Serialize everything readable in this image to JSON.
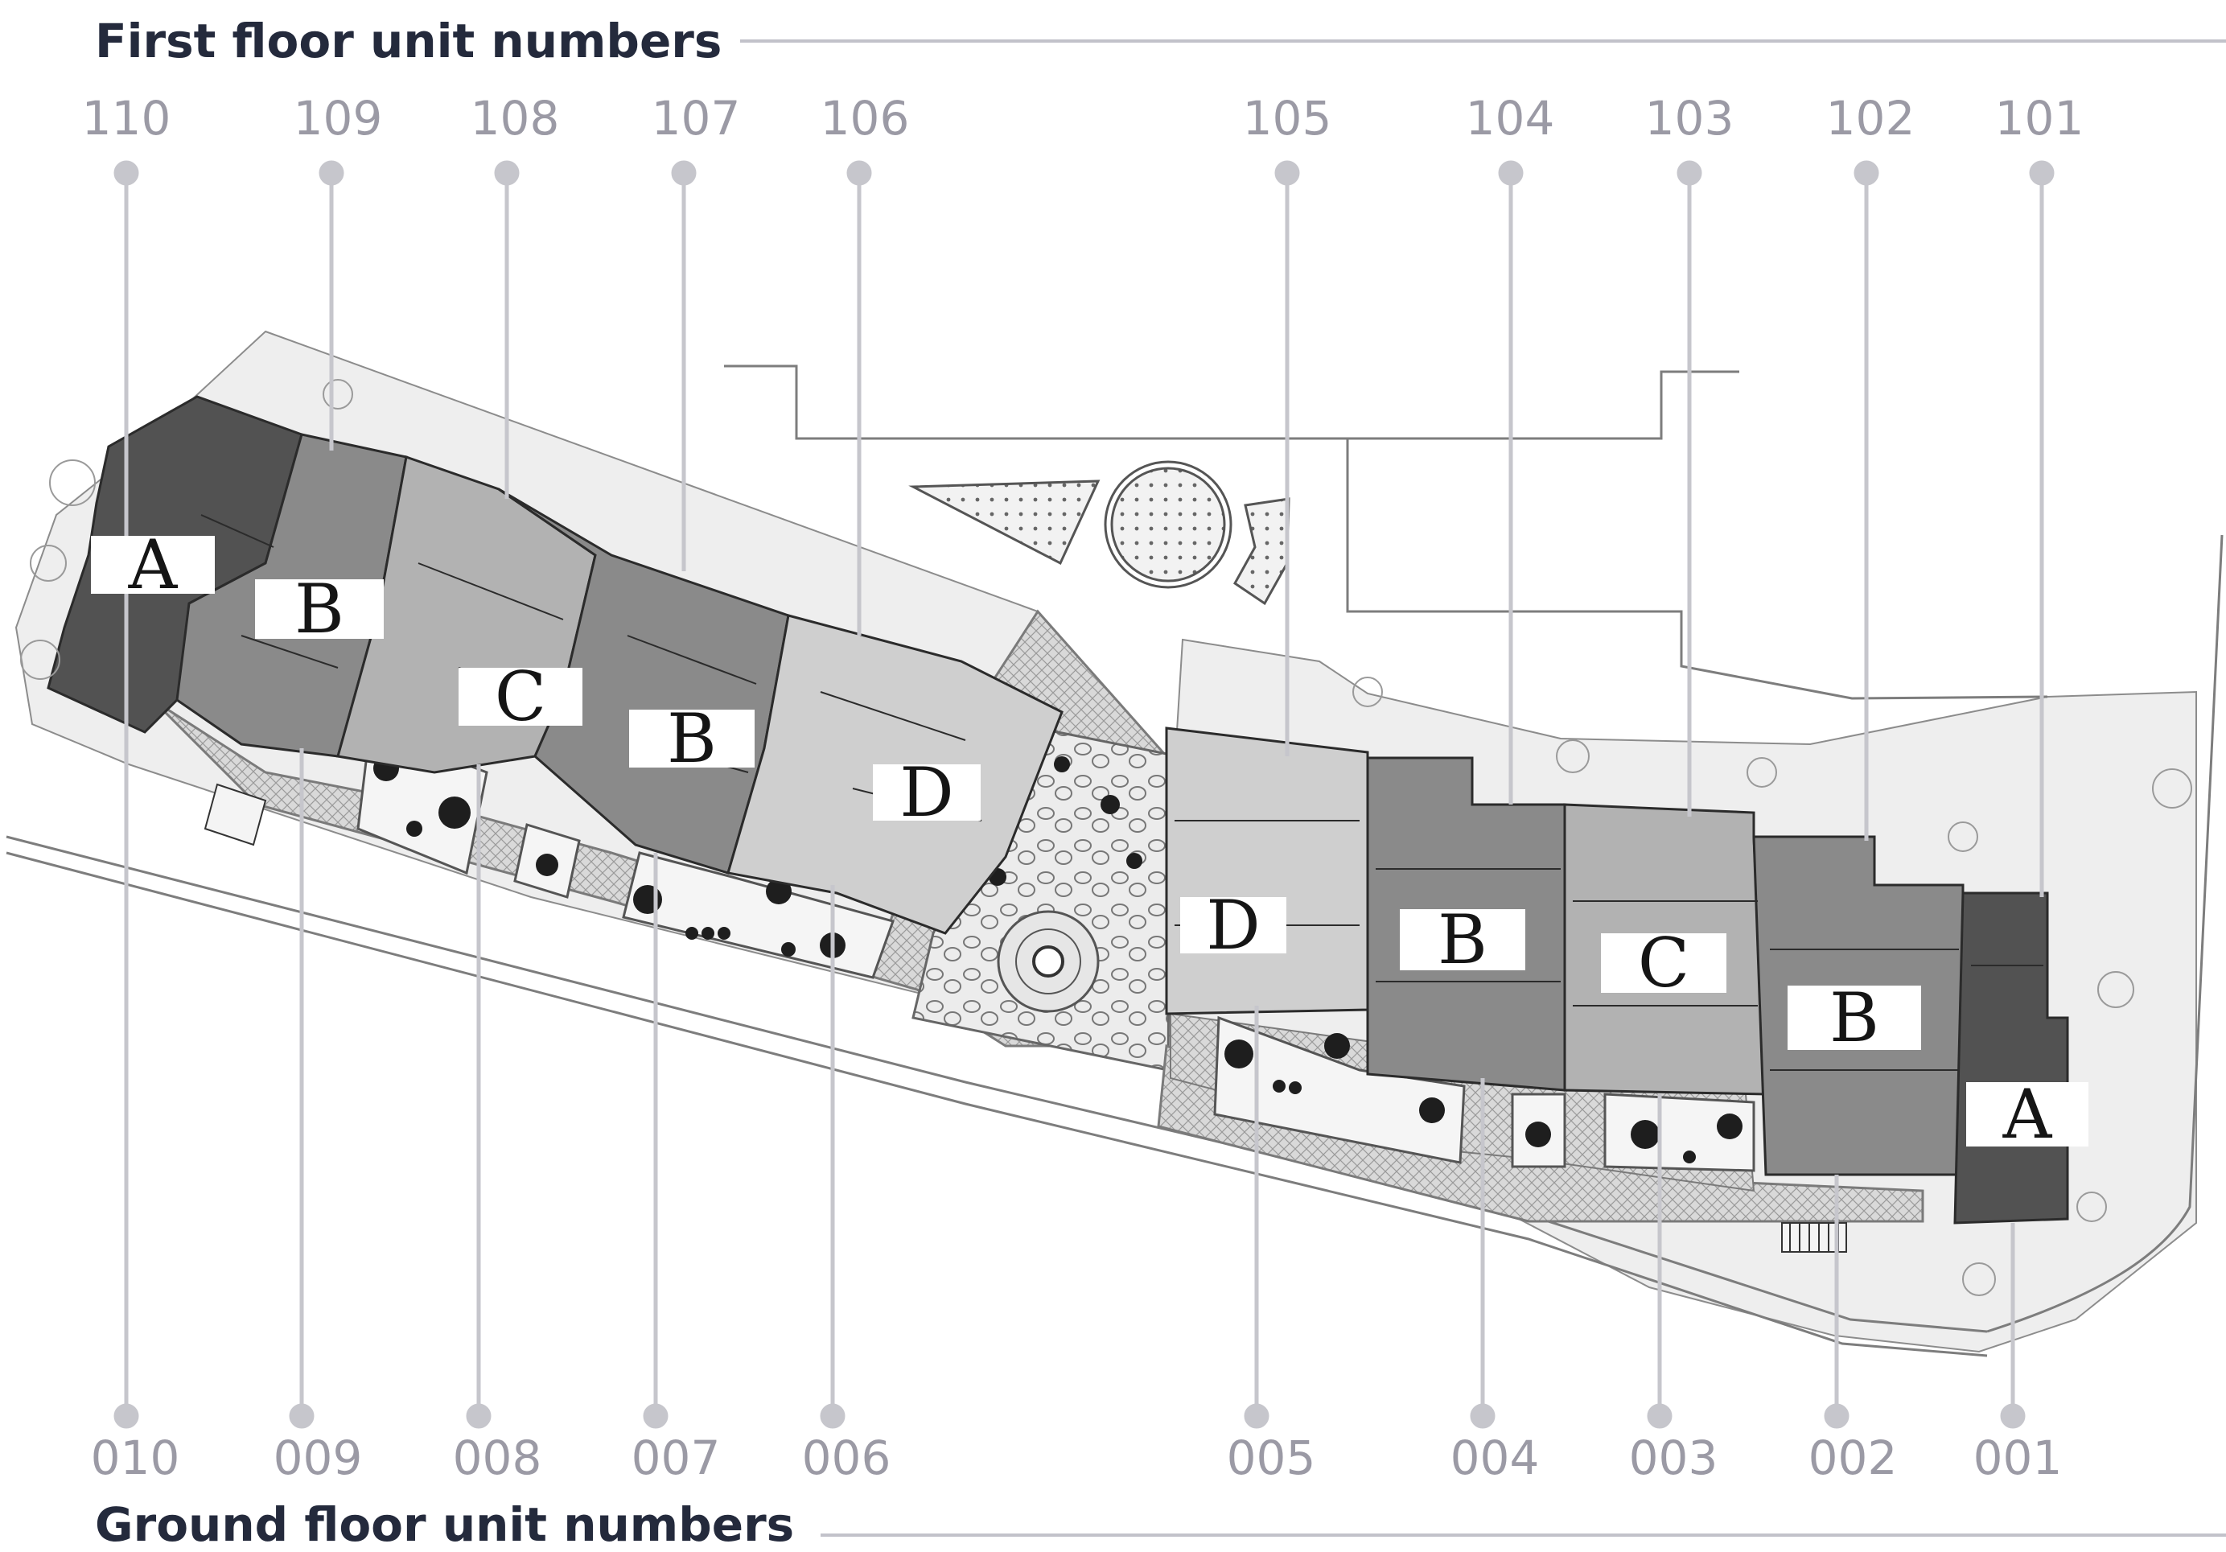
{
  "headings": {
    "first_floor": "First floor unit numbers",
    "ground_floor": "Ground floor unit numbers"
  },
  "first_floor_units": [
    "110",
    "109",
    "108",
    "107",
    "106",
    "105",
    "104",
    "103",
    "102",
    "101"
  ],
  "ground_floor_units": [
    "010",
    "009",
    "008",
    "007",
    "006",
    "005",
    "004",
    "003",
    "002",
    "001"
  ],
  "unit_types": [
    "A",
    "B",
    "C",
    "B",
    "D",
    "D",
    "B",
    "C",
    "B",
    "A"
  ],
  "colors": {
    "heading_text": "#242a3c",
    "label_text": "#9b9aa5",
    "leader_line": "#c6c6cc",
    "type_A": "#525252",
    "type_B": "#8a8a8a",
    "type_C": "#b2b2b2",
    "type_D": "#cfcfcf",
    "paving": "#dcdcdc",
    "lawn": "#eeeeee"
  }
}
